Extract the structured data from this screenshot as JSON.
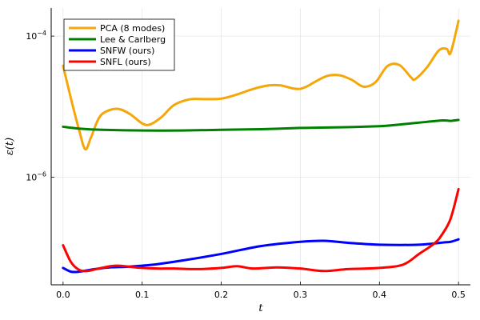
{
  "chart_data": {
    "type": "line",
    "title": "",
    "xlabel": "t",
    "ylabel": "ε(t)",
    "xscale": "linear",
    "yscale": "log",
    "xlim": [
      -0.015,
      0.515
    ],
    "ylim": [
      3e-08,
      0.00025
    ],
    "grid": true,
    "legend_position": "top-left",
    "xticks": [
      {
        "value": 0,
        "label": "0.0"
      },
      {
        "value": 0.1,
        "label": "0.1"
      },
      {
        "value": 0.2,
        "label": "0.2"
      },
      {
        "value": 0.3,
        "label": "0.3"
      },
      {
        "value": 0.4,
        "label": "0.4"
      },
      {
        "value": 0.5,
        "label": "0.5"
      }
    ],
    "yticks": [
      {
        "value": 1e-06,
        "base": "10",
        "exp": "−6"
      },
      {
        "value": 0.0001,
        "base": "10",
        "exp": "−4"
      }
    ],
    "series": [
      {
        "name": "PCA (8 modes)",
        "color": "#f5a70a",
        "x": [
          0,
          0.01,
          0.02,
          0.028,
          0.035,
          0.045,
          0.055,
          0.07,
          0.085,
          0.1,
          0.11,
          0.125,
          0.14,
          0.16,
          0.18,
          0.2,
          0.22,
          0.24,
          0.26,
          0.275,
          0.29,
          0.3,
          0.31,
          0.32,
          0.335,
          0.35,
          0.365,
          0.38,
          0.395,
          0.41,
          0.425,
          0.44,
          0.445,
          0.46,
          0.475,
          0.485,
          0.49,
          0.5
        ],
        "y": [
          3.8e-05,
          1.3e-05,
          4.8e-06,
          2.5e-06,
          3.6e-06,
          6.8e-06,
          8.6e-06,
          9.3e-06,
          7.8e-06,
          5.8e-06,
          5.6e-06,
          7.2e-06,
          1.05e-05,
          1.27e-05,
          1.28e-05,
          1.3e-05,
          1.49e-05,
          1.78e-05,
          2e-05,
          2e-05,
          1.82e-05,
          1.79e-05,
          1.98e-05,
          2.3e-05,
          2.75e-05,
          2.78e-05,
          2.4e-05,
          1.92e-05,
          2.22e-05,
          3.75e-05,
          3.9e-05,
          2.6e-05,
          2.45e-05,
          3.6e-05,
          6.25e-05,
          6.6e-05,
          5.8e-05,
          0.000165
        ]
      },
      {
        "name": "Lee & Carlberg",
        "color": "#008000",
        "x": [
          0,
          0.02,
          0.05,
          0.1,
          0.15,
          0.2,
          0.25,
          0.3,
          0.35,
          0.4,
          0.42,
          0.44,
          0.46,
          0.48,
          0.49,
          0.5
        ],
        "y": [
          5.2e-06,
          4.9e-06,
          4.7e-06,
          4.6e-06,
          4.6e-06,
          4.7e-06,
          4.8e-06,
          5e-06,
          5.1e-06,
          5.3e-06,
          5.5e-06,
          5.8e-06,
          6.1e-06,
          6.4e-06,
          6.3e-06,
          6.5e-06
        ]
      },
      {
        "name": "SNFW (ours)",
        "color": "#0000ff",
        "x": [
          0,
          0.01,
          0.02,
          0.04,
          0.06,
          0.08,
          0.1,
          0.12,
          0.15,
          0.2,
          0.25,
          0.3,
          0.33,
          0.36,
          0.4,
          0.45,
          0.48,
          0.49,
          0.5
        ],
        "y": [
          5.2e-08,
          4.6e-08,
          4.6e-08,
          5e-08,
          5.3e-08,
          5.4e-08,
          5.6e-08,
          5.9e-08,
          6.6e-08,
          8.2e-08,
          1.06e-07,
          1.22e-07,
          1.26e-07,
          1.18e-07,
          1.11e-07,
          1.11e-07,
          1.19e-07,
          1.22e-07,
          1.32e-07
        ]
      },
      {
        "name": "SNFL (ours)",
        "color": "#ff0000",
        "x": [
          0,
          0.01,
          0.02,
          0.03,
          0.045,
          0.06,
          0.07,
          0.085,
          0.1,
          0.12,
          0.14,
          0.17,
          0.2,
          0.22,
          0.24,
          0.27,
          0.3,
          0.33,
          0.36,
          0.4,
          0.43,
          0.45,
          0.47,
          0.48,
          0.49,
          0.5
        ],
        "y": [
          1.09e-07,
          6.3e-08,
          4.9e-08,
          4.7e-08,
          5.1e-08,
          5.5e-08,
          5.6e-08,
          5.4e-08,
          5.2e-08,
          5.1e-08,
          5.1e-08,
          5e-08,
          5.2e-08,
          5.5e-08,
          5.1e-08,
          5.3e-08,
          5.1e-08,
          4.7e-08,
          5e-08,
          5.2e-08,
          5.8e-08,
          8.2e-08,
          1.17e-07,
          1.6e-07,
          2.6e-07,
          6.8e-07
        ]
      }
    ]
  }
}
